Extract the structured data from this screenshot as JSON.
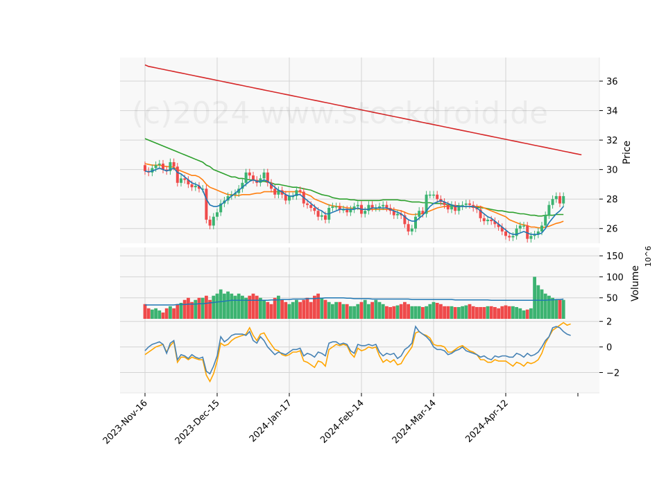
{
  "watermark": "(c)2024 www.stockdroid.de",
  "colors": {
    "up": "#3cb371",
    "down": "#ef4a4a",
    "ma_short": "#1f77b4",
    "ma_mid": "#ff7f0e",
    "ma_long": "#2ca02c",
    "ma_200": "#d62728",
    "vol_avg": "#1f77b4",
    "osc_a": "#4682b4",
    "osc_b": "#ffa500",
    "panel_bg": "#f8f8f8",
    "grid": "#d3d3d3"
  },
  "chart_data": [
    {
      "type": "candlestick",
      "panel": "price",
      "ylabel": "Price",
      "ylim": [
        25,
        37.6
      ],
      "yticks": [
        "26",
        "28",
        "30",
        "32",
        "34",
        "36"
      ],
      "x_labels": [
        "2023-Nov-16",
        "2023-Dec-15",
        "2024-Jan-17",
        "2024-Feb-14",
        "2024-Mar-14",
        "2024-Apr-12"
      ],
      "x_label_index": [
        0,
        20,
        40,
        60,
        80,
        100
      ],
      "grid": true,
      "closes": [
        29.9,
        29.8,
        30.1,
        30.3,
        30.4,
        30.0,
        29.9,
        30.5,
        30.2,
        29.1,
        29.4,
        29.3,
        29.0,
        28.8,
        28.9,
        28.7,
        28.7,
        26.6,
        26.2,
        26.8,
        27.1,
        27.7,
        27.9,
        28.2,
        28.3,
        28.4,
        28.7,
        29.1,
        29.8,
        29.6,
        29.3,
        29.1,
        29.4,
        29.8,
        29.1,
        28.7,
        28.3,
        28.6,
        28.3,
        27.9,
        28.2,
        28.2,
        28.6,
        28.5,
        27.7,
        27.6,
        27.4,
        27.2,
        26.8,
        26.9,
        26.6,
        27.4,
        27.5,
        27.5,
        27.3,
        27.3,
        27.1,
        27.3,
        27.5,
        27.6,
        27.0,
        27.2,
        27.6,
        27.4,
        27.4,
        27.5,
        27.6,
        27.4,
        27.2,
        26.9,
        27.0,
        26.9,
        26.3,
        25.8,
        26.0,
        26.8,
        27.2,
        27.0,
        28.3,
        28.3,
        28.3,
        28.0,
        27.8,
        27.6,
        27.3,
        27.6,
        27.2,
        27.5,
        27.6,
        27.7,
        27.6,
        27.4,
        27.3,
        26.7,
        26.5,
        26.6,
        26.5,
        26.3,
        26.1,
        25.8,
        25.5,
        25.4,
        25.5,
        26.0,
        26.2,
        26.2,
        25.3,
        25.5,
        25.6,
        25.8,
        26.2,
        26.9,
        27.6,
        28.0,
        28.2,
        27.7,
        28.2
      ],
      "ma_short": [
        29.9,
        29.85,
        29.9,
        30.0,
        30.1,
        30.0,
        29.9,
        30.0,
        30.1,
        29.8,
        29.7,
        29.5,
        29.3,
        29.1,
        29.0,
        28.9,
        28.6,
        28.0,
        27.6,
        27.5,
        27.5,
        27.6,
        27.8,
        28.0,
        28.2,
        28.4,
        28.6,
        28.8,
        29.0,
        29.2,
        29.3,
        29.2,
        29.2,
        29.3,
        29.2,
        29.0,
        28.8,
        28.6,
        28.5,
        28.3,
        28.2,
        28.2,
        28.3,
        28.3,
        28.1,
        27.9,
        27.7,
        27.5,
        27.3,
        27.2,
        27.0,
        27.0,
        27.1,
        27.2,
        27.3,
        27.3,
        27.3,
        27.3,
        27.3,
        27.4,
        27.3,
        27.3,
        27.3,
        27.4,
        27.4,
        27.4,
        27.4,
        27.4,
        27.3,
        27.2,
        27.1,
        27.0,
        26.8,
        26.6,
        26.5,
        26.5,
        26.7,
        26.9,
        27.2,
        27.5,
        27.7,
        27.8,
        27.9,
        27.8,
        27.7,
        27.6,
        27.5,
        27.5,
        27.5,
        27.5,
        27.5,
        27.5,
        27.4,
        27.2,
        27.0,
        26.8,
        26.7,
        26.5,
        26.3,
        26.1,
        25.9,
        25.7,
        25.6,
        25.6,
        25.7,
        25.8,
        25.7,
        25.6,
        25.6,
        25.6,
        25.7,
        26.0,
        26.4,
        26.7,
        27.0,
        27.2,
        27.5
      ],
      "ma_mid": [
        30.4,
        30.35,
        30.3,
        30.3,
        30.3,
        30.25,
        30.2,
        30.2,
        30.15,
        30.0,
        29.9,
        29.8,
        29.7,
        29.6,
        29.6,
        29.5,
        29.3,
        29.0,
        28.8,
        28.7,
        28.6,
        28.5,
        28.4,
        28.3,
        28.3,
        28.25,
        28.25,
        28.3,
        28.3,
        28.3,
        28.35,
        28.4,
        28.4,
        28.5,
        28.5,
        28.5,
        28.5,
        28.5,
        28.5,
        28.5,
        28.5,
        28.5,
        28.5,
        28.5,
        28.4,
        28.3,
        28.2,
        28.0,
        27.9,
        27.8,
        27.7,
        27.6,
        27.55,
        27.5,
        27.5,
        27.45,
        27.4,
        27.4,
        27.35,
        27.35,
        27.3,
        27.3,
        27.3,
        27.3,
        27.3,
        27.3,
        27.3,
        27.3,
        27.3,
        27.3,
        27.25,
        27.2,
        27.1,
        27.0,
        26.95,
        26.95,
        27.0,
        27.0,
        27.1,
        27.2,
        27.3,
        27.4,
        27.45,
        27.5,
        27.5,
        27.5,
        27.5,
        27.5,
        27.5,
        27.5,
        27.5,
        27.5,
        27.5,
        27.5,
        27.4,
        27.3,
        27.2,
        27.1,
        27.0,
        26.9,
        26.8,
        26.6,
        26.5,
        26.4,
        26.3,
        26.25,
        26.2,
        26.1,
        26.1,
        26.05,
        26.05,
        26.1,
        26.15,
        26.25,
        26.35,
        26.4,
        26.5
      ],
      "ma_long": [
        32.1,
        32.0,
        31.9,
        31.8,
        31.7,
        31.6,
        31.5,
        31.4,
        31.3,
        31.2,
        31.1,
        31.0,
        30.9,
        30.8,
        30.7,
        30.6,
        30.5,
        30.3,
        30.2,
        30.0,
        29.9,
        29.8,
        29.7,
        29.6,
        29.5,
        29.5,
        29.4,
        29.4,
        29.35,
        29.3,
        29.3,
        29.25,
        29.2,
        29.2,
        29.15,
        29.1,
        29.0,
        29.0,
        28.95,
        28.9,
        28.85,
        28.8,
        28.8,
        28.75,
        28.7,
        28.65,
        28.6,
        28.5,
        28.4,
        28.3,
        28.25,
        28.2,
        28.1,
        28.05,
        28.0,
        28.0,
        28.0,
        27.95,
        27.95,
        27.9,
        27.9,
        27.9,
        27.9,
        27.9,
        27.9,
        27.9,
        27.95,
        27.95,
        27.95,
        27.95,
        27.95,
        27.9,
        27.9,
        27.85,
        27.8,
        27.8,
        27.8,
        27.75,
        27.75,
        27.75,
        27.7,
        27.7,
        27.7,
        27.65,
        27.6,
        27.6,
        27.55,
        27.55,
        27.5,
        27.5,
        27.5,
        27.45,
        27.45,
        27.4,
        27.4,
        27.35,
        27.3,
        27.25,
        27.2,
        27.2,
        27.15,
        27.1,
        27.1,
        27.05,
        27.0,
        27.0,
        26.95,
        26.9,
        26.9,
        26.85,
        26.85,
        26.9,
        26.9,
        26.9,
        26.95,
        26.95,
        26.95
      ],
      "ma_200": [
        37.1,
        37.0,
        36.95,
        36.9,
        36.85,
        36.8,
        36.75,
        36.7,
        36.65,
        36.6,
        36.55,
        36.5,
        36.45,
        36.4,
        36.35,
        36.3,
        36.25,
        36.2,
        36.15,
        36.1,
        36.05,
        36.0,
        35.95,
        35.9,
        35.85,
        35.8,
        35.75,
        35.7,
        35.65,
        35.6,
        35.55,
        35.5,
        35.45,
        35.4,
        35.35,
        35.3,
        35.25,
        35.2,
        35.15,
        35.1,
        35.05,
        35.0,
        34.95,
        34.9,
        34.85,
        34.8,
        34.75,
        34.7,
        34.65,
        34.6,
        34.55,
        34.5,
        34.45,
        34.4,
        34.35,
        34.3,
        34.25,
        34.2,
        34.15,
        34.1,
        34.05,
        34.0,
        33.95,
        33.9,
        33.85,
        33.8,
        33.75,
        33.7,
        33.65,
        33.6,
        33.55,
        33.5,
        33.45,
        33.4,
        33.35,
        33.3,
        33.25,
        33.2,
        33.15,
        33.1,
        33.05,
        33.0,
        32.95,
        32.9,
        32.85,
        32.8,
        32.75,
        32.7,
        32.65,
        32.6,
        32.55,
        32.5,
        32.45,
        32.4,
        32.35,
        32.3,
        32.25,
        32.2,
        32.15,
        32.1,
        32.05,
        32.0,
        31.95,
        31.9,
        31.85,
        31.8,
        31.75,
        31.7,
        31.65,
        31.6,
        31.55,
        31.5,
        31.45,
        31.4,
        31.35,
        31.3,
        31.25,
        31.2,
        31.15,
        31.1,
        31.05,
        31.0
      ]
    },
    {
      "type": "bar",
      "panel": "volume",
      "ylabel": "Volume",
      "unit": "10^6",
      "ylim": [
        0,
        170
      ],
      "yticks": [
        "50",
        "100",
        "150"
      ],
      "grid": true,
      "volume": [
        35,
        25,
        22,
        25,
        20,
        15,
        25,
        30,
        25,
        35,
        38,
        45,
        50,
        40,
        45,
        50,
        50,
        55,
        45,
        55,
        60,
        70,
        60,
        65,
        60,
        55,
        60,
        55,
        50,
        55,
        60,
        55,
        50,
        45,
        40,
        35,
        50,
        55,
        45,
        40,
        35,
        40,
        45,
        40,
        45,
        50,
        40,
        55,
        60,
        50,
        45,
        40,
        35,
        40,
        40,
        35,
        35,
        30,
        30,
        35,
        40,
        45,
        35,
        40,
        45,
        40,
        35,
        30,
        28,
        30,
        32,
        35,
        40,
        35,
        30,
        30,
        30,
        28,
        30,
        35,
        40,
        38,
        35,
        30,
        30,
        30,
        28,
        28,
        30,
        32,
        35,
        30,
        28,
        28,
        28,
        30,
        30,
        28,
        25,
        30,
        32,
        30,
        30,
        28,
        25,
        20,
        22,
        25,
        100,
        80,
        70,
        60,
        55,
        50,
        45,
        45,
        45
      ],
      "volume_avg": [
        33,
        33,
        33,
        33,
        33,
        33,
        33,
        33,
        33,
        34,
        34,
        34,
        35,
        35,
        35,
        36,
        36,
        37,
        38,
        39,
        40,
        41,
        42,
        43,
        44,
        44,
        44,
        44,
        44,
        44,
        44,
        44,
        44,
        44,
        44,
        45,
        45,
        45,
        46,
        46,
        46,
        47,
        47,
        47,
        47,
        48,
        48,
        48,
        49,
        49,
        50,
        50,
        50,
        50,
        50,
        50,
        49,
        49,
        48,
        48,
        48,
        48,
        48,
        47,
        47,
        47,
        47,
        47,
        47,
        47,
        47,
        47,
        47,
        47,
        46,
        46,
        46,
        46,
        46,
        46,
        46,
        46,
        46,
        46,
        46,
        46,
        45,
        45,
        45,
        45,
        45,
        45,
        45,
        45,
        45,
        45,
        44,
        44,
        44,
        44,
        44,
        44,
        44,
        44,
        44,
        44,
        44,
        44,
        44,
        44,
        44,
        44,
        45,
        45,
        46,
        46,
        47
      ]
    },
    {
      "type": "line",
      "panel": "oscillator",
      "ylim": [
        -3.6,
        2.2
      ],
      "yticks": [
        "−2",
        "0",
        "2"
      ],
      "grid": true,
      "osc_a": [
        -0.3,
        0.0,
        0.2,
        0.3,
        0.4,
        0.2,
        -0.5,
        0.3,
        0.5,
        -1.0,
        -0.6,
        -0.7,
        -0.9,
        -0.6,
        -0.8,
        -0.9,
        -0.8,
        -1.9,
        -2.1,
        -1.5,
        -0.7,
        0.8,
        0.4,
        0.6,
        0.9,
        1.0,
        1.0,
        1.0,
        0.9,
        1.2,
        0.5,
        0.3,
        0.8,
        0.5,
        0.0,
        -0.3,
        -0.6,
        -0.4,
        -0.5,
        -0.6,
        -0.4,
        -0.2,
        -0.2,
        -0.1,
        -0.7,
        -0.5,
        -0.6,
        -0.8,
        -0.4,
        -0.5,
        -0.7,
        0.3,
        0.4,
        0.4,
        0.2,
        0.3,
        0.2,
        -0.3,
        -0.5,
        0.2,
        0.1,
        0.1,
        0.2,
        0.1,
        0.2,
        -0.4,
        -0.7,
        -0.5,
        -0.6,
        -0.5,
        -0.9,
        -0.7,
        -0.2,
        0.0,
        0.3,
        1.6,
        1.2,
        1.0,
        0.8,
        0.5,
        0.0,
        -0.2,
        -0.2,
        -0.3,
        -0.6,
        -0.5,
        -0.3,
        -0.2,
        0.0,
        -0.3,
        -0.4,
        -0.5,
        -0.6,
        -0.8,
        -0.7,
        -0.9,
        -1.0,
        -0.7,
        -0.8,
        -0.7,
        -0.7,
        -0.8,
        -0.8,
        -0.5,
        -0.6,
        -0.8,
        -0.5,
        -0.7,
        -0.6,
        -0.4,
        0.0,
        0.5,
        0.8,
        1.5,
        1.6,
        1.5,
        1.2,
        1.0,
        0.9
      ],
      "osc_b": [
        -0.6,
        -0.4,
        -0.2,
        0.0,
        0.1,
        0.2,
        -0.4,
        0.1,
        0.4,
        -1.2,
        -0.8,
        -0.8,
        -1.0,
        -0.8,
        -0.9,
        -1.0,
        -1.0,
        -2.2,
        -2.7,
        -2.1,
        -1.1,
        0.3,
        0.1,
        0.2,
        0.5,
        0.7,
        0.8,
        0.9,
        1.0,
        1.5,
        0.9,
        0.5,
        1.0,
        1.1,
        0.6,
        0.2,
        -0.2,
        -0.3,
        -0.6,
        -0.7,
        -0.6,
        -0.4,
        -0.4,
        -0.3,
        -1.1,
        -1.2,
        -1.4,
        -1.6,
        -1.1,
        -1.2,
        -1.5,
        -0.2,
        0.0,
        0.2,
        0.1,
        0.2,
        0.1,
        -0.5,
        -0.8,
        -0.1,
        -0.3,
        -0.2,
        0.0,
        -0.1,
        0.0,
        -0.7,
        -1.2,
        -1.0,
        -1.2,
        -1.0,
        -1.4,
        -1.3,
        -0.8,
        -0.4,
        0.0,
        1.1,
        1.2,
        1.0,
        0.9,
        0.7,
        0.2,
        0.1,
        0.1,
        0.0,
        -0.4,
        -0.4,
        -0.2,
        0.0,
        0.1,
        -0.1,
        -0.3,
        -0.4,
        -0.6,
        -1.0,
        -1.0,
        -1.2,
        -1.2,
        -1.0,
        -1.1,
        -1.1,
        -1.1,
        -1.3,
        -1.5,
        -1.2,
        -1.3,
        -1.5,
        -1.2,
        -1.3,
        -1.2,
        -1.0,
        -0.5,
        0.3,
        0.8,
        1.3,
        1.5,
        1.7,
        1.9,
        1.7,
        1.8
      ]
    }
  ]
}
